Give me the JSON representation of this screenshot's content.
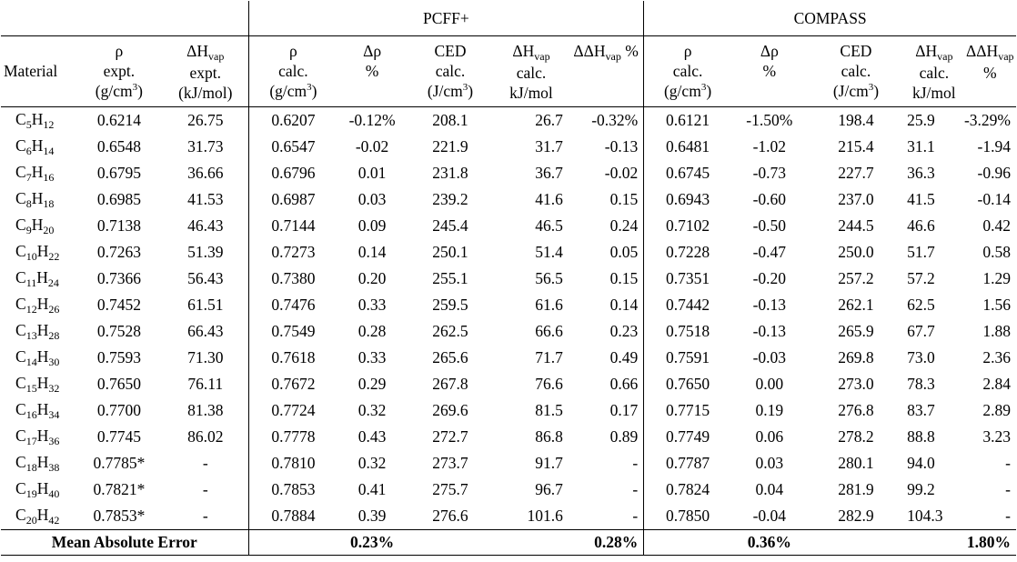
{
  "group_headers": {
    "pcff": "PCFF+",
    "compass": "COMPASS"
  },
  "columns": {
    "material": "Material",
    "rho_expt": [
      "ρ",
      "expt.",
      "(g/cm3)"
    ],
    "dhvap_expt": [
      "ΔHvap",
      "expt.",
      "kJ/mol"
    ],
    "rho_calc": [
      "ρ",
      "calc.",
      "(g/cm3)"
    ],
    "drho": [
      "Δρ",
      "%"
    ],
    "ced": [
      "CED",
      "calc.",
      "(J/cm3)"
    ],
    "dhvap_calc": [
      "ΔHvap",
      "calc.",
      "kJ/mol"
    ],
    "ddhvap": "ΔΔHvap %"
  },
  "rows": [
    {
      "c": "5",
      "h": "12",
      "rho_expt": "0.6214",
      "dh_expt": "26.75",
      "p_rho": "0.6207",
      "p_drho": "-0.12%",
      "p_ced": "208.1",
      "p_dh": "26.7",
      "p_ddh": "-0.32%",
      "c_rho": "0.6121",
      "c_drho": "-1.50%",
      "c_ced": "198.4",
      "c_dh": "25.9",
      "c_ddh": "-3.29%"
    },
    {
      "c": "6",
      "h": "14",
      "rho_expt": "0.6548",
      "dh_expt": "31.73",
      "p_rho": "0.6547",
      "p_drho": "-0.02",
      "p_ced": "221.9",
      "p_dh": "31.7",
      "p_ddh": "-0.13",
      "c_rho": "0.6481",
      "c_drho": "-1.02",
      "c_ced": "215.4",
      "c_dh": "31.1",
      "c_ddh": "-1.94"
    },
    {
      "c": "7",
      "h": "16",
      "rho_expt": "0.6795",
      "dh_expt": "36.66",
      "p_rho": "0.6796",
      "p_drho": "0.01",
      "p_ced": "231.8",
      "p_dh": "36.7",
      "p_ddh": "-0.02",
      "c_rho": "0.6745",
      "c_drho": "-0.73",
      "c_ced": "227.7",
      "c_dh": "36.3",
      "c_ddh": "-0.96"
    },
    {
      "c": "8",
      "h": "18",
      "rho_expt": "0.6985",
      "dh_expt": "41.53",
      "p_rho": "0.6987",
      "p_drho": "0.03",
      "p_ced": "239.2",
      "p_dh": "41.6",
      "p_ddh": "0.15",
      "c_rho": "0.6943",
      "c_drho": "-0.60",
      "c_ced": "237.0",
      "c_dh": "41.5",
      "c_ddh": "-0.14"
    },
    {
      "c": "9",
      "h": "20",
      "rho_expt": "0.7138",
      "dh_expt": "46.43",
      "p_rho": "0.7144",
      "p_drho": "0.09",
      "p_ced": "245.4",
      "p_dh": "46.5",
      "p_ddh": "0.24",
      "c_rho": "0.7102",
      "c_drho": "-0.50",
      "c_ced": "244.5",
      "c_dh": "46.6",
      "c_ddh": "0.42"
    },
    {
      "c": "10",
      "h": "22",
      "rho_expt": "0.7263",
      "dh_expt": "51.39",
      "p_rho": "0.7273",
      "p_drho": "0.14",
      "p_ced": "250.1",
      "p_dh": "51.4",
      "p_ddh": "0.05",
      "c_rho": "0.7228",
      "c_drho": "-0.47",
      "c_ced": "250.0",
      "c_dh": "51.7",
      "c_ddh": "0.58"
    },
    {
      "c": "11",
      "h": "24",
      "rho_expt": "0.7366",
      "dh_expt": "56.43",
      "p_rho": "0.7380",
      "p_drho": "0.20",
      "p_ced": "255.1",
      "p_dh": "56.5",
      "p_ddh": "0.15",
      "c_rho": "0.7351",
      "c_drho": "-0.20",
      "c_ced": "257.2",
      "c_dh": "57.2",
      "c_ddh": "1.29"
    },
    {
      "c": "12",
      "h": "26",
      "rho_expt": "0.7452",
      "dh_expt": "61.51",
      "p_rho": "0.7476",
      "p_drho": "0.33",
      "p_ced": "259.5",
      "p_dh": "61.6",
      "p_ddh": "0.14",
      "c_rho": "0.7442",
      "c_drho": "-0.13",
      "c_ced": "262.1",
      "c_dh": "62.5",
      "c_ddh": "1.56"
    },
    {
      "c": "13",
      "h": "28",
      "rho_expt": "0.7528",
      "dh_expt": "66.43",
      "p_rho": "0.7549",
      "p_drho": "0.28",
      "p_ced": "262.5",
      "p_dh": "66.6",
      "p_ddh": "0.23",
      "c_rho": "0.7518",
      "c_drho": "-0.13",
      "c_ced": "265.9",
      "c_dh": "67.7",
      "c_ddh": "1.88"
    },
    {
      "c": "14",
      "h": "30",
      "rho_expt": "0.7593",
      "dh_expt": "71.30",
      "p_rho": "0.7618",
      "p_drho": "0.33",
      "p_ced": "265.6",
      "p_dh": "71.7",
      "p_ddh": "0.49",
      "c_rho": "0.7591",
      "c_drho": "-0.03",
      "c_ced": "269.8",
      "c_dh": "73.0",
      "c_ddh": "2.36"
    },
    {
      "c": "15",
      "h": "32",
      "rho_expt": "0.7650",
      "dh_expt": "76.11",
      "p_rho": "0.7672",
      "p_drho": "0.29",
      "p_ced": "267.8",
      "p_dh": "76.6",
      "p_ddh": "0.66",
      "c_rho": "0.7650",
      "c_drho": "0.00",
      "c_ced": "273.0",
      "c_dh": "78.3",
      "c_ddh": "2.84"
    },
    {
      "c": "16",
      "h": "34",
      "rho_expt": "0.7700",
      "dh_expt": "81.38",
      "p_rho": "0.7724",
      "p_drho": "0.32",
      "p_ced": "269.6",
      "p_dh": "81.5",
      "p_ddh": "0.17",
      "c_rho": "0.7715",
      "c_drho": "0.19",
      "c_ced": "276.8",
      "c_dh": "83.7",
      "c_ddh": "2.89"
    },
    {
      "c": "17",
      "h": "36",
      "rho_expt": "0.7745",
      "dh_expt": "86.02",
      "p_rho": "0.7778",
      "p_drho": "0.43",
      "p_ced": "272.7",
      "p_dh": "86.8",
      "p_ddh": "0.89",
      "c_rho": "0.7749",
      "c_drho": "0.06",
      "c_ced": "278.2",
      "c_dh": "88.8",
      "c_ddh": "3.23"
    },
    {
      "c": "18",
      "h": "38",
      "rho_expt": "0.7785*",
      "dh_expt": "-",
      "p_rho": "0.7810",
      "p_drho": "0.32",
      "p_ced": "273.7",
      "p_dh": "91.7",
      "p_ddh": "-",
      "c_rho": "0.7787",
      "c_drho": "0.03",
      "c_ced": "280.1",
      "c_dh": "94.0",
      "c_ddh": "-"
    },
    {
      "c": "19",
      "h": "40",
      "rho_expt": "0.7821*",
      "dh_expt": "-",
      "p_rho": "0.7853",
      "p_drho": "0.41",
      "p_ced": "275.7",
      "p_dh": "96.7",
      "p_ddh": "-",
      "c_rho": "0.7824",
      "c_drho": "0.04",
      "c_ced": "281.9",
      "c_dh": "99.2",
      "c_ddh": "-"
    },
    {
      "c": "20",
      "h": "42",
      "rho_expt": "0.7853*",
      "dh_expt": "-",
      "p_rho": "0.7884",
      "p_drho": "0.39",
      "p_ced": "276.6",
      "p_dh": "101.6",
      "p_ddh": "-",
      "c_rho": "0.7850",
      "c_drho": "-0.04",
      "c_ced": "282.9",
      "c_dh": "104.3",
      "c_ddh": "-"
    }
  ],
  "mae": {
    "label": "Mean Absolute Error",
    "p_drho": "0.23%",
    "p_ddh": "0.28%",
    "c_drho": "0.36%",
    "c_ddh": "1.80%"
  }
}
